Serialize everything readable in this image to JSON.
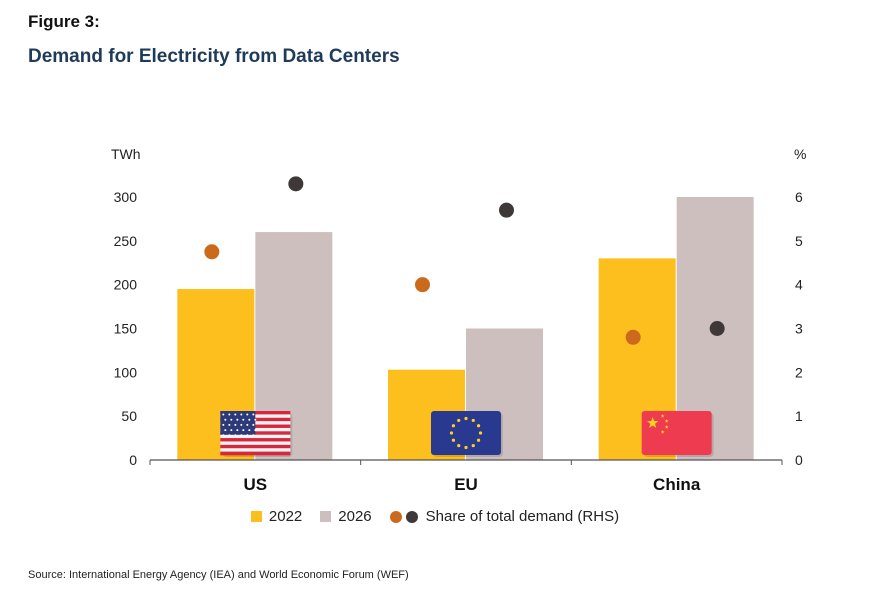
{
  "figure_label": "Figure 3:",
  "figure_title": "Demand for Electricity from Data Centers",
  "source": "Source: International Energy Agency (IEA) and World Economic Forum (WEF)",
  "colors": {
    "bar_2022": "#fdbf1d",
    "bar_2026": "#cdbfbd",
    "dot_2022": "#cb6a1c",
    "dot_2026": "#3f3838",
    "axis": "#555555"
  },
  "legend": {
    "item_2022": "2022",
    "item_2026": "2026",
    "item_share": "Share of total demand (RHS)"
  },
  "chart_data": {
    "type": "bar",
    "categories": [
      "US",
      "EU",
      "China"
    ],
    "series": [
      {
        "name": "2022",
        "values": [
          195,
          103,
          230
        ]
      },
      {
        "name": "2026",
        "values": [
          260,
          150,
          300
        ]
      }
    ],
    "share_series": [
      {
        "name": "2022",
        "values": [
          4.75,
          4.0,
          2.8
        ]
      },
      {
        "name": "2026",
        "values": [
          6.3,
          5.7,
          3.0
        ]
      }
    ],
    "share_label": "Share of total demand (RHS)",
    "ylabel": "TWh",
    "ylabel_right": "%",
    "ylim": [
      0,
      300
    ],
    "ylim_right": [
      0,
      6
    ],
    "yticks": [
      0,
      50,
      100,
      150,
      200,
      250,
      300
    ],
    "yticks_right": [
      0,
      1,
      2,
      3,
      4,
      5,
      6
    ],
    "grid": false,
    "legend_position": "bottom",
    "flags": [
      "us-flag",
      "eu-flag",
      "china-flag"
    ]
  }
}
